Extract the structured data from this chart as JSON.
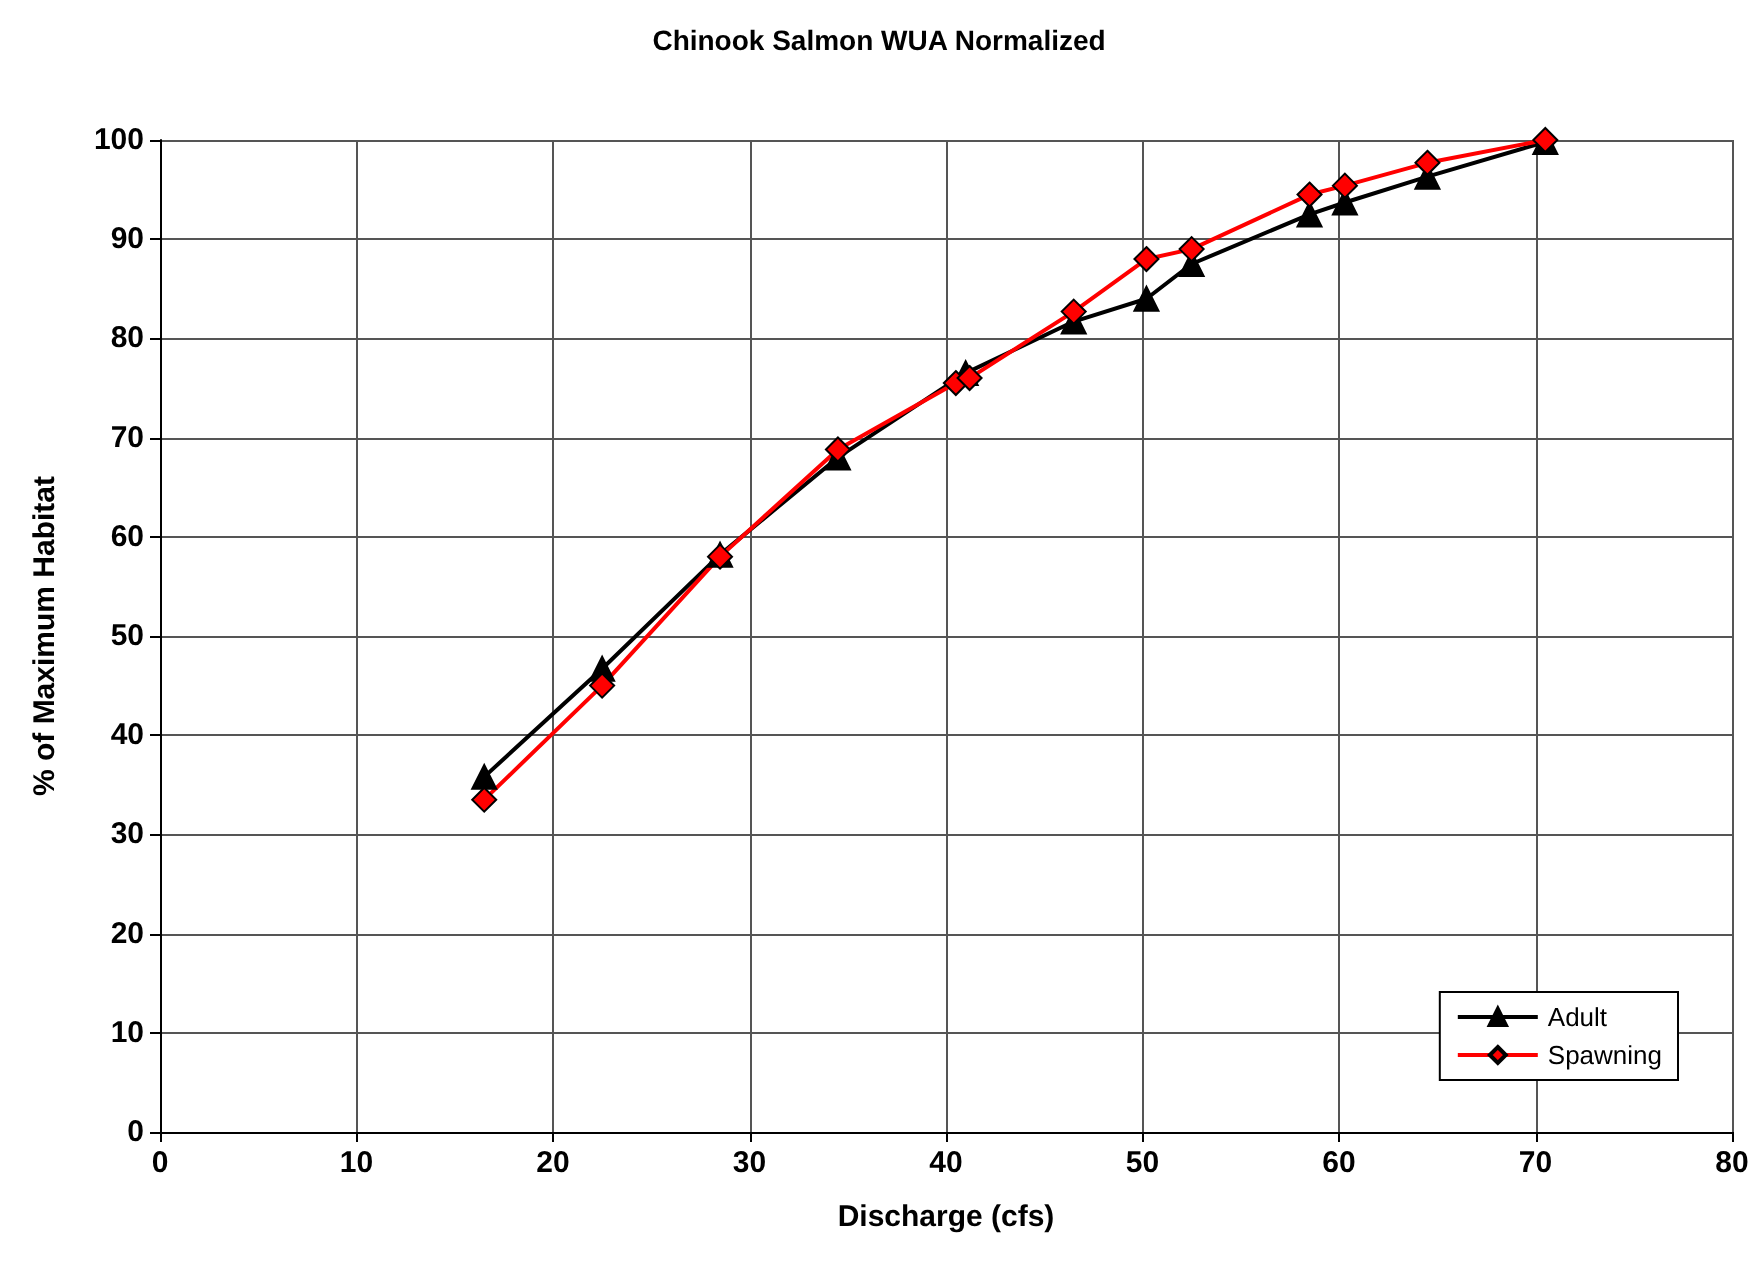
{
  "chart_data": {
    "type": "line",
    "title": "Chinook Salmon WUA Normalized",
    "xlabel": "Discharge (cfs)",
    "ylabel": "% of Maximum Habitat",
    "xlim": [
      0,
      80
    ],
    "xticks": [
      0,
      10,
      20,
      30,
      40,
      50,
      60,
      70,
      80
    ],
    "ylim": [
      0,
      100
    ],
    "yticks": [
      0,
      10,
      20,
      30,
      40,
      50,
      60,
      70,
      80,
      90,
      100
    ],
    "grid": true,
    "legend": "bottom right",
    "series": [
      {
        "name": "Adult",
        "color": "#000000",
        "marker": "triangle",
        "x": [
          16.5,
          22.5,
          28.5,
          34.5,
          41,
          46.5,
          50.2,
          52.5,
          58.5,
          60.3,
          64.5,
          70.5
        ],
        "values": [
          35.8,
          46.7,
          58.2,
          68,
          76.5,
          81.7,
          84,
          87.5,
          92.5,
          93.7,
          96.3,
          99.8
        ]
      },
      {
        "name": "Spawning",
        "color": "#ff0000",
        "marker": "diamond",
        "x": [
          16.5,
          22.5,
          28.5,
          34.5,
          40.5,
          41.2,
          46.5,
          50.2,
          52.5,
          58.5,
          60.3,
          64.5,
          70.5
        ],
        "values": [
          33.5,
          45,
          58,
          68.8,
          75.5,
          76,
          82.7,
          88,
          89,
          94.5,
          95.4,
          97.7,
          100
        ]
      }
    ]
  }
}
